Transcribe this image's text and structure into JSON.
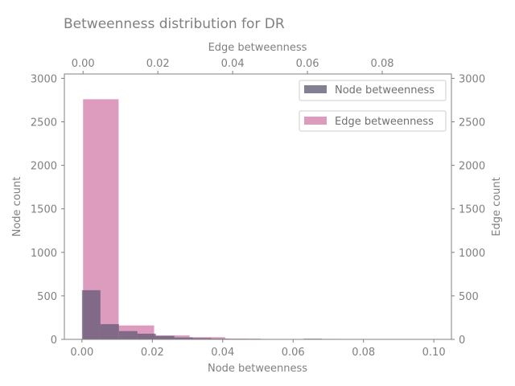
{
  "chart_data": {
    "type": "bar",
    "title": "Betweenness distribution for DR",
    "colors": {
      "node": "#5a5670",
      "edge": "#d27aa8",
      "axis": "#808080"
    },
    "bottom_axis": {
      "label": "Node betweenness",
      "xlim": [
        -0.005,
        0.105
      ],
      "ticks": [
        "0.00",
        "0.02",
        "0.04",
        "0.06",
        "0.08",
        "0.10"
      ],
      "tick_values": [
        0,
        0.02,
        0.04,
        0.06,
        0.08,
        0.1
      ]
    },
    "top_axis": {
      "label": "Edge betweenness",
      "xlim": [
        -0.005,
        0.0985
      ],
      "ticks": [
        "0.00",
        "0.02",
        "0.04",
        "0.06",
        "0.08"
      ],
      "tick_values": [
        0,
        0.02,
        0.04,
        0.06,
        0.08
      ]
    },
    "left_axis": {
      "label": "Node count",
      "ylim": [
        0,
        3050
      ],
      "ticks": [
        "0",
        "500",
        "1000",
        "1500",
        "2000",
        "2500",
        "3000"
      ],
      "tick_values": [
        0,
        500,
        1000,
        1500,
        2000,
        2500,
        3000
      ]
    },
    "right_axis": {
      "label": "Edge count",
      "ylim": [
        0,
        3050
      ],
      "ticks": [
        "0",
        "500",
        "1000",
        "1500",
        "2000",
        "2500",
        "3000"
      ],
      "tick_values": [
        0,
        500,
        1000,
        1500,
        2000,
        2500,
        3000
      ]
    },
    "series": [
      {
        "name": "Node betweenness",
        "bin_edges": [
          0,
          0.00525,
          0.0105,
          0.01575,
          0.021,
          0.02625,
          0.0315,
          0.03675,
          0.042,
          0.04725,
          0.0525,
          0.05775,
          0.063,
          0.06825,
          0.0735
        ],
        "counts": [
          565,
          175,
          95,
          65,
          40,
          22,
          15,
          8,
          6,
          5,
          3,
          2,
          8,
          5
        ]
      },
      {
        "name": "Edge betweenness",
        "bin_edges": [
          0,
          0.0095,
          0.019,
          0.0285,
          0.038,
          0.0475,
          0.057,
          0.0665,
          0.076,
          0.0855,
          0.095
        ],
        "counts": [
          2760,
          160,
          45,
          25,
          8,
          4,
          3,
          2,
          1,
          1
        ]
      }
    ],
    "legend": {
      "placement": "top-right",
      "entries": [
        "Node betweenness",
        "Edge betweenness"
      ]
    }
  }
}
